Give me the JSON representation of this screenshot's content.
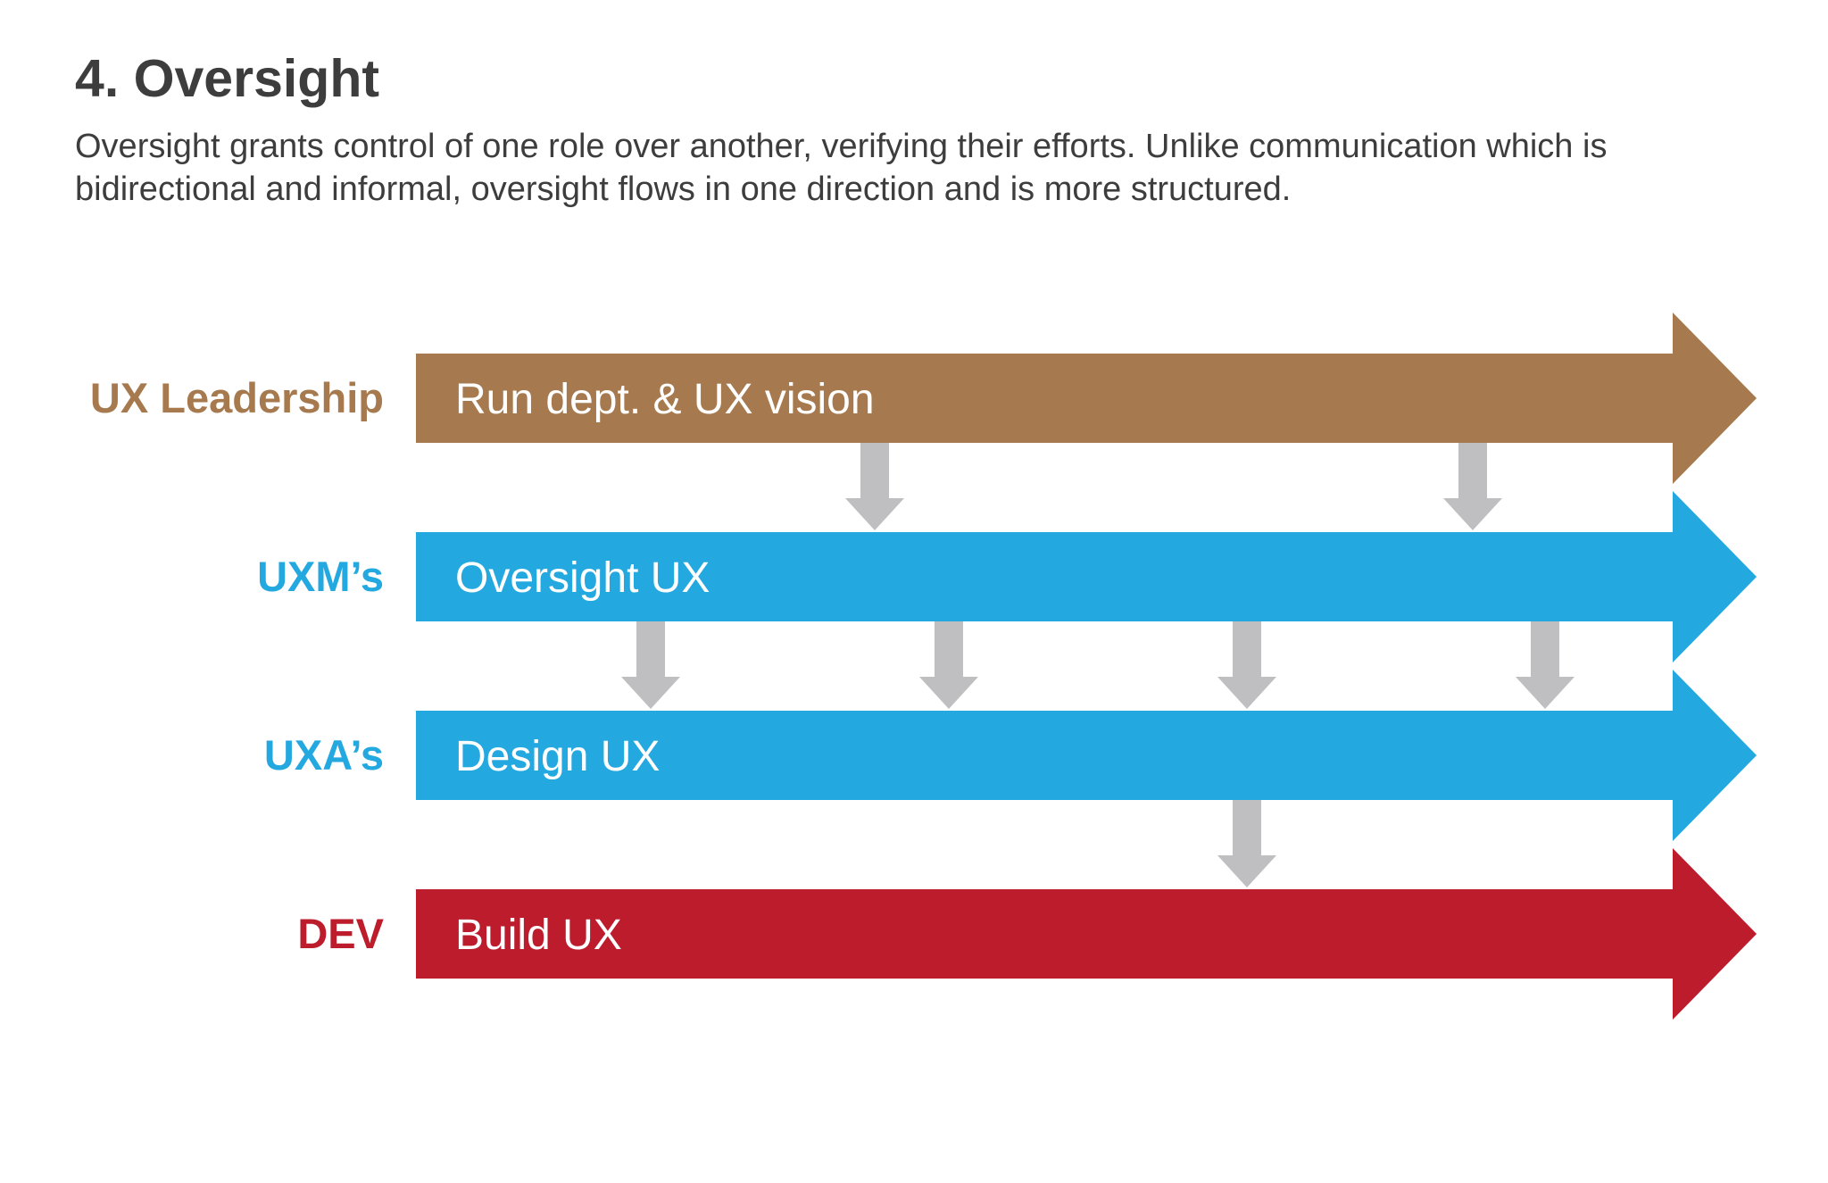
{
  "title": "4. Oversight",
  "description": "Oversight grants control of one role over another, verifying their efforts.  Unlike communication which is bidirectional and informal, oversight flows in one direction and is more structured.",
  "colors": {
    "leadership": "#a67a4e",
    "uxm": "#24a8e0",
    "uxa": "#24a8e0",
    "dev": "#bd1c2d",
    "connector": "#bfbfc1"
  },
  "lanes": [
    {
      "role": "UX Leadership",
      "activity": "Run dept. & UX vision",
      "color": "#a67a4e"
    },
    {
      "role": "UXM’s",
      "activity": "Oversight UX",
      "color": "#24a8e0"
    },
    {
      "role": "UXA’s",
      "activity": "Design UX",
      "color": "#24a8e0"
    },
    {
      "role": "DEV",
      "activity": "Build UX",
      "color": "#bd1c2d"
    }
  ],
  "oversight_links": [
    {
      "from": "UX Leadership",
      "to": "UXM’s",
      "count": 2
    },
    {
      "from": "UXM’s",
      "to": "UXA’s",
      "count": 4
    },
    {
      "from": "UXA’s",
      "to": "DEV",
      "count": 1
    }
  ]
}
